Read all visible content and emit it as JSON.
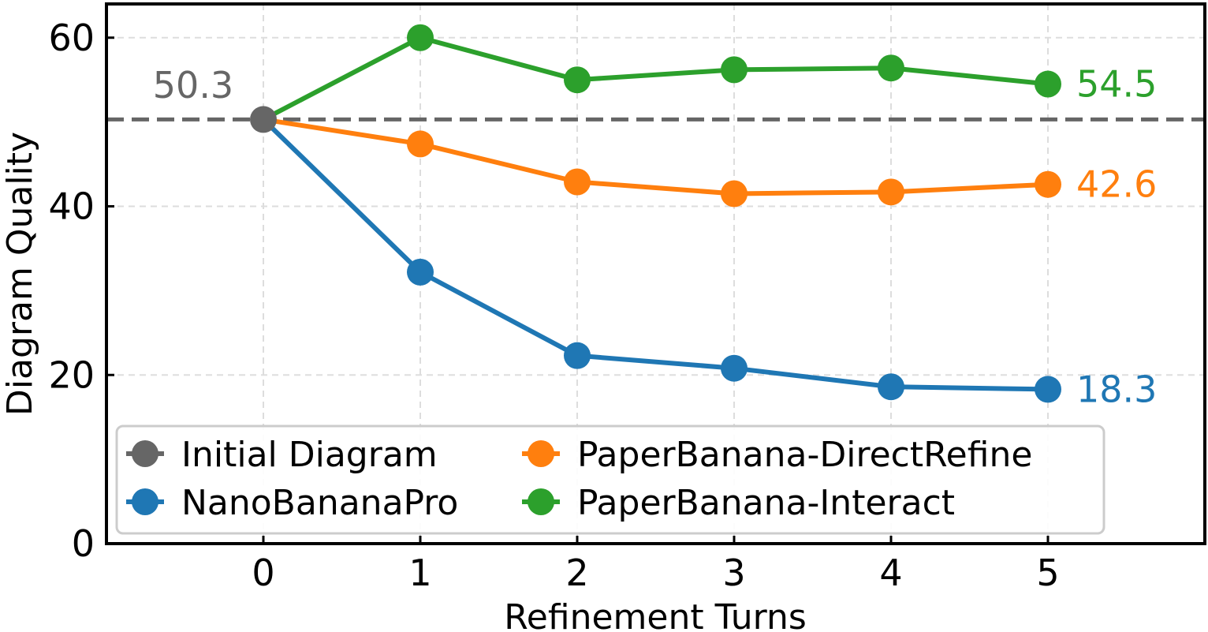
{
  "chart_data": {
    "type": "line",
    "xlabel": "Refinement Turns",
    "ylabel": "Diagram Quality",
    "x": [
      0,
      1,
      2,
      3,
      4,
      5
    ],
    "xlim": [
      -1,
      6
    ],
    "ylim": [
      0,
      64
    ],
    "xticks": [
      "0",
      "1",
      "2",
      "3",
      "4",
      "5"
    ],
    "yticks": [
      "0",
      "20",
      "40",
      "60"
    ],
    "grid": true,
    "baseline": {
      "value": 50.3,
      "label": "50.3",
      "color": "#666666",
      "style": "dashed"
    },
    "initial_point": {
      "name": "Initial Diagram",
      "x": 0,
      "y": 50.3,
      "color": "#666666"
    },
    "series": [
      {
        "name": "NanoBananaPro",
        "color": "#1f77b4",
        "values": [
          50.3,
          32.2,
          22.3,
          20.8,
          18.6,
          18.3
        ],
        "end_label": "18.3"
      },
      {
        "name": "PaperBanana-DirectRefine",
        "color": "#ff7f0e",
        "values": [
          50.3,
          47.4,
          42.9,
          41.5,
          41.7,
          42.6
        ],
        "end_label": "42.6"
      },
      {
        "name": "PaperBanana-Interact",
        "color": "#2ca02c",
        "values": [
          50.3,
          60.0,
          55.0,
          56.2,
          56.4,
          54.5
        ],
        "end_label": "54.5"
      }
    ],
    "legend": {
      "position": "lower-left",
      "entries": [
        {
          "name": "Initial Diagram",
          "color": "#666666"
        },
        {
          "name": "PaperBanana-DirectRefine",
          "color": "#ff7f0e"
        },
        {
          "name": "NanoBananaPro",
          "color": "#1f77b4"
        },
        {
          "name": "PaperBanana-Interact",
          "color": "#2ca02c"
        }
      ]
    }
  }
}
